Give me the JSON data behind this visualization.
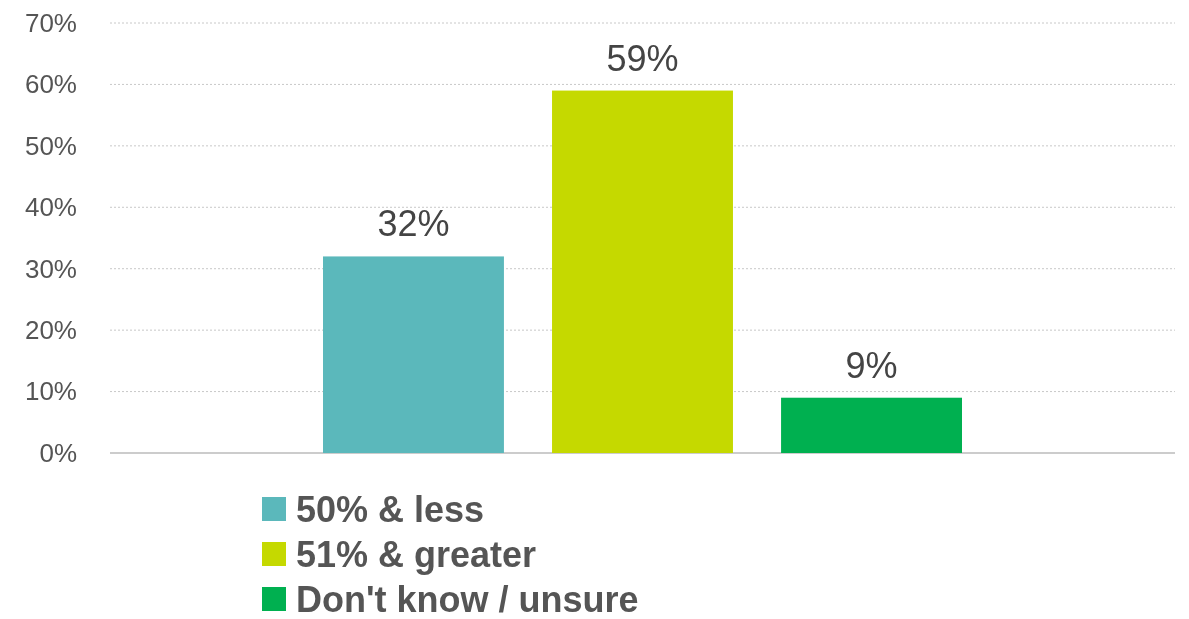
{
  "chart_data": {
    "type": "bar",
    "categories": [
      null
    ],
    "series": [
      {
        "name": "50% & less",
        "color": "#5bb8bb",
        "values": [
          32
        ],
        "value_labels": [
          "32%"
        ]
      },
      {
        "name": "51% & greater",
        "color": "#c5d900",
        "values": [
          59
        ],
        "value_labels": [
          "59%"
        ]
      },
      {
        "name": "Don't know / unsure",
        "color": "#00b050",
        "values": [
          9
        ],
        "value_labels": [
          "9%"
        ]
      }
    ],
    "ylim": [
      0,
      70
    ],
    "yticks": [
      {
        "value": 0,
        "label": "0%"
      },
      {
        "value": 10,
        "label": "10%"
      },
      {
        "value": 20,
        "label": "20%"
      },
      {
        "value": 30,
        "label": "30%"
      },
      {
        "value": 40,
        "label": "40%"
      },
      {
        "value": 50,
        "label": "50%"
      },
      {
        "value": 60,
        "label": "60%"
      },
      {
        "value": 70,
        "label": "70%"
      }
    ],
    "grid": "y",
    "legend": "bottom"
  }
}
